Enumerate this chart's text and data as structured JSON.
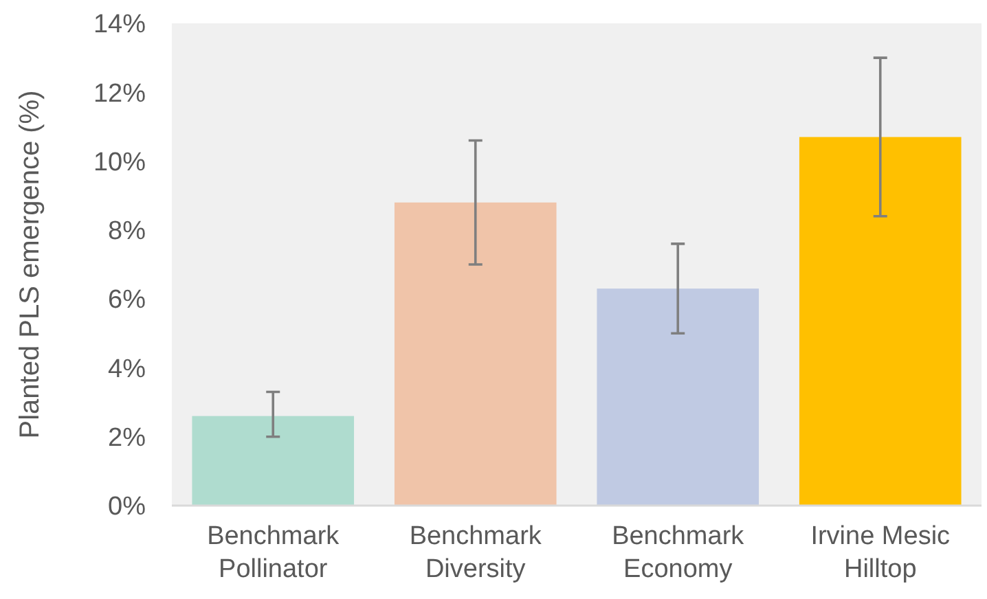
{
  "chart_data": {
    "type": "bar",
    "ylabel": "Planted PLS emergence (%)",
    "categories": [
      "Benchmark Pollinator",
      "Benchmark Diversity",
      "Benchmark Economy",
      "Irvine Mesic Hilltop"
    ],
    "values": [
      2.6,
      8.8,
      6.3,
      10.7
    ],
    "colors": [
      "#afdccf",
      "#f0c4a9",
      "#c0cae3",
      "#ffc000"
    ],
    "errors": [
      [
        2.0,
        3.3
      ],
      [
        7.0,
        10.6
      ],
      [
        5.0,
        7.6
      ],
      [
        8.4,
        13.0
      ]
    ],
    "ylim": [
      0,
      14
    ],
    "yticks": [
      {
        "value": 0,
        "label": "0%"
      },
      {
        "value": 2,
        "label": "2%"
      },
      {
        "value": 4,
        "label": "4%"
      },
      {
        "value": 6,
        "label": "6%"
      },
      {
        "value": 8,
        "label": "8%"
      },
      {
        "value": 10,
        "label": "10%"
      },
      {
        "value": 12,
        "label": "12%"
      },
      {
        "value": 14,
        "label": "14%"
      }
    ],
    "grid": false
  }
}
